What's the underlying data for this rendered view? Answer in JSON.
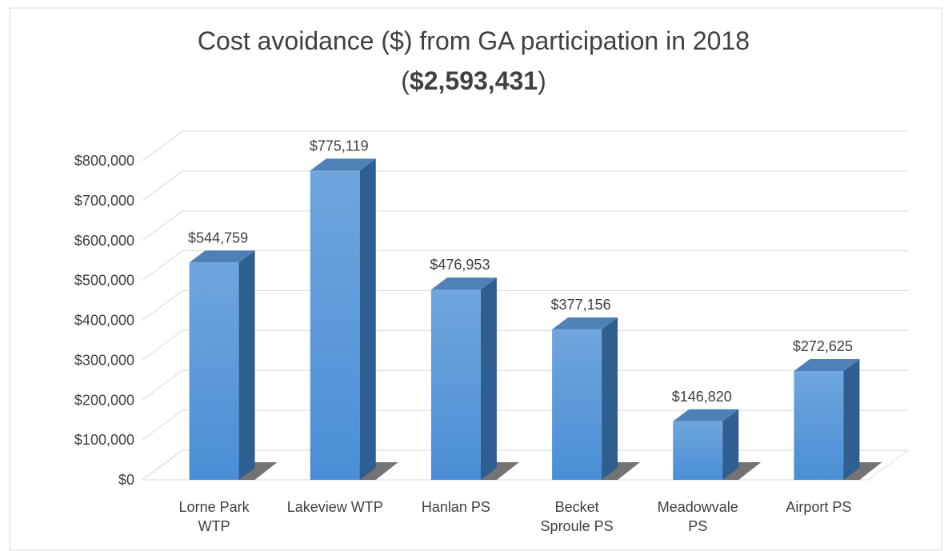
{
  "chart_data": {
    "type": "bar3d",
    "title": "Cost avoidance ($) from GA participation in 2018",
    "subtitle": [
      "(",
      "$2,593,431",
      ")"
    ],
    "categories": [
      "Lorne Park WTP",
      "Lakeview WTP",
      "Hanlan PS",
      "Becket Sproule PS",
      "Meadowvale PS",
      "Airport PS"
    ],
    "values": [
      544759,
      775119,
      476953,
      377156,
      146820,
      272625
    ],
    "value_labels": [
      "$544,759",
      "$775,119",
      "$476,953",
      "$377,156",
      "$146,820",
      "$272,625"
    ],
    "color": "#5b9bd5",
    "ylim": [
      0,
      800000
    ],
    "yticks": [
      {
        "value": 0,
        "label": "$0"
      },
      {
        "value": 100000,
        "label": "$100,000"
      },
      {
        "value": 200000,
        "label": "$200,000"
      },
      {
        "value": 300000,
        "label": "$300,000"
      },
      {
        "value": 400000,
        "label": "$400,000"
      },
      {
        "value": 500000,
        "label": "$500,000"
      },
      {
        "value": 600000,
        "label": "$600,000"
      },
      {
        "value": 700000,
        "label": "$700,000"
      },
      {
        "value": 800000,
        "label": "$800,000"
      }
    ],
    "grid": true
  }
}
